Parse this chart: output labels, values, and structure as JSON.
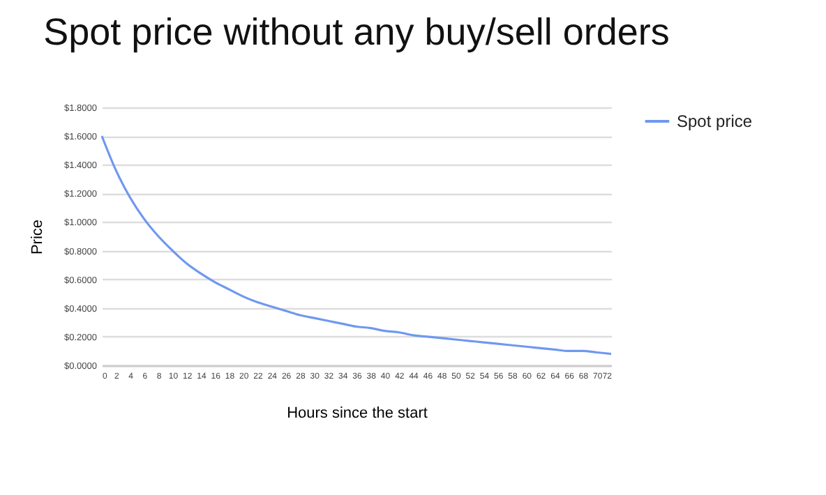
{
  "chart_data": {
    "type": "line",
    "title": "Spot price without any buy/sell orders",
    "xlabel": "Hours since the start",
    "ylabel": "Price",
    "x": [
      0,
      2,
      4,
      6,
      8,
      10,
      12,
      14,
      16,
      18,
      20,
      22,
      24,
      26,
      28,
      30,
      32,
      34,
      36,
      38,
      40,
      42,
      44,
      46,
      48,
      50,
      52,
      54,
      56,
      58,
      60,
      62,
      64,
      66,
      68,
      70,
      72
    ],
    "series": [
      {
        "name": "Spot price",
        "color": "#6f98f0",
        "values": [
          1.6,
          1.36,
          1.17,
          1.02,
          0.9,
          0.8,
          0.71,
          0.64,
          0.58,
          0.53,
          0.48,
          0.44,
          0.41,
          0.38,
          0.35,
          0.33,
          0.31,
          0.29,
          0.27,
          0.26,
          0.24,
          0.23,
          0.21,
          0.2,
          0.19,
          0.18,
          0.17,
          0.16,
          0.15,
          0.14,
          0.13,
          0.12,
          0.11,
          0.1,
          0.1,
          0.09,
          0.08
        ]
      }
    ],
    "xlim": [
      0,
      72
    ],
    "xticks": [
      0,
      2,
      4,
      6,
      8,
      10,
      12,
      14,
      16,
      18,
      20,
      22,
      24,
      26,
      28,
      30,
      32,
      34,
      36,
      38,
      40,
      42,
      44,
      46,
      48,
      50,
      52,
      54,
      56,
      58,
      60,
      62,
      64,
      66,
      68,
      70,
      72
    ],
    "ylim": [
      0,
      1.8
    ],
    "yticks": [
      {
        "value": 0,
        "label": "$0.0000"
      },
      {
        "value": 0.2,
        "label": "$0.2000"
      },
      {
        "value": 0.4,
        "label": "$0.4000"
      },
      {
        "value": 0.6,
        "label": "$0.6000"
      },
      {
        "value": 0.8,
        "label": "$0.8000"
      },
      {
        "value": 1.0,
        "label": "$1.0000"
      },
      {
        "value": 1.2,
        "label": "$1.2000"
      },
      {
        "value": 1.4,
        "label": "$1.4000"
      },
      {
        "value": 1.6,
        "label": "$1.6000"
      },
      {
        "value": 1.8,
        "label": "$1.8000"
      }
    ],
    "grid": "y",
    "legend": "right",
    "marker": "none",
    "line_style": "solid"
  }
}
